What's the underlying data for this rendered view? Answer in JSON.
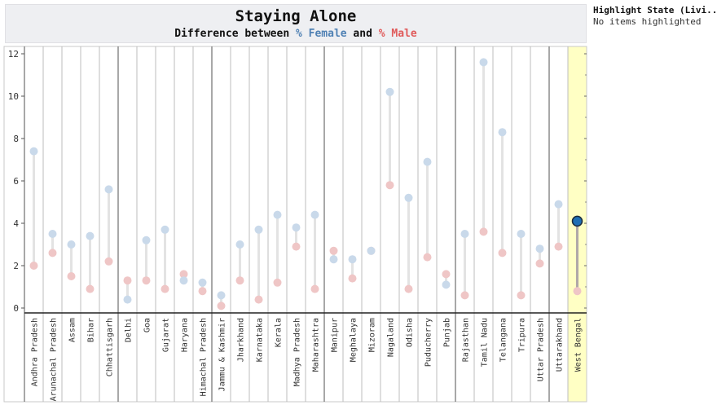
{
  "header": {
    "title": "Staying Alone",
    "subtitle_prefix": "Difference between ",
    "female_label": "% Female",
    "subtitle_mid": " and ",
    "male_label": "% Male"
  },
  "legend": {
    "title": "Highlight State (Livi..",
    "empty_text": "No items highlighted"
  },
  "colors": {
    "female": "#c9d9ea",
    "male": "#efc6c6",
    "connector": "#e3e3e3",
    "highlight_bg": "#ffffc4",
    "highlight_dot": "#1f6fb4",
    "highlight_line": "#b0a8a8"
  },
  "chart_data": {
    "type": "dumbbell",
    "title": "Staying Alone",
    "subtitle": "Difference between % Female and % Male",
    "ylim": [
      0,
      12
    ],
    "yticks": [
      0,
      2,
      4,
      6,
      8,
      10,
      12
    ],
    "highlighted": "West Bengal",
    "categories": [
      "Andhra Pradesh",
      "Arunachal Pradesh",
      "Assam",
      "Bihar",
      "Chhattisgarh",
      "Delhi",
      "Goa",
      "Gujarat",
      "Haryana",
      "Himachal Pradesh",
      "Jammu & Kashmir",
      "Jharkhand",
      "Karnataka",
      "Kerala",
      "Madhya Pradesh",
      "Maharashtra",
      "Manipur",
      "Meghalaya",
      "Mizoram",
      "Nagaland",
      "Odisha",
      "Puducherry",
      "Punjab",
      "Rajasthan",
      "Tamil Nadu",
      "Telangana",
      "Tripura",
      "Uttar Pradesh",
      "Uttarakhand",
      "West Bengal"
    ],
    "groups": [
      5,
      5,
      6,
      7,
      5,
      2
    ],
    "series": [
      {
        "name": "% Female",
        "values": [
          7.4,
          3.5,
          3.0,
          3.4,
          5.6,
          0.4,
          3.2,
          3.7,
          1.3,
          1.2,
          0.6,
          3.0,
          3.7,
          4.4,
          3.8,
          4.4,
          2.3,
          2.3,
          2.7,
          10.2,
          5.2,
          6.9,
          1.1,
          3.5,
          11.6,
          8.3,
          3.5,
          2.8,
          4.9,
          4.1
        ]
      },
      {
        "name": "% Male",
        "values": [
          2.0,
          2.6,
          1.5,
          0.9,
          2.2,
          1.3,
          1.3,
          0.9,
          1.6,
          0.8,
          0.1,
          1.3,
          0.4,
          1.2,
          2.9,
          0.9,
          2.7,
          1.4,
          2.7,
          5.8,
          0.9,
          2.4,
          1.6,
          0.6,
          3.6,
          2.6,
          0.6,
          2.1,
          2.9,
          0.8
        ]
      }
    ]
  }
}
